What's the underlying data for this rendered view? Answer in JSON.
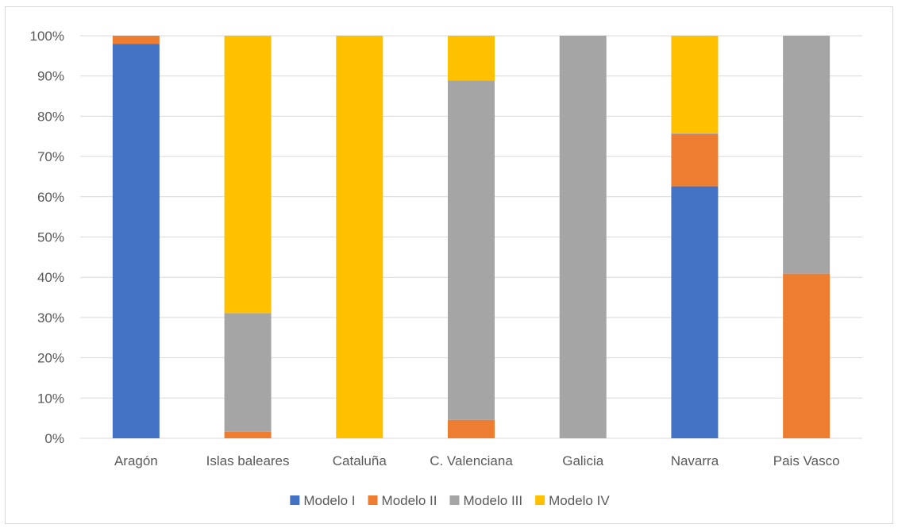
{
  "chart_data": {
    "type": "bar",
    "stacked": true,
    "percent": true,
    "categories": [
      "Aragón",
      "Islas baleares",
      "Cataluña",
      "C. Valenciana",
      "Galicia",
      "Navarra",
      "Pais Vasco"
    ],
    "series": [
      {
        "name": "Modelo I",
        "color": "#4472c4",
        "values": [
          98,
          0,
          0,
          0,
          0,
          62.6,
          0
        ]
      },
      {
        "name": "Modelo II",
        "color": "#ed7d31",
        "values": [
          2,
          1.6,
          0,
          4.6,
          0,
          13,
          40.9
        ]
      },
      {
        "name": "Modelo III",
        "color": "#a5a5a5",
        "values": [
          0,
          29.5,
          0,
          84.3,
          100,
          0.2,
          59.1
        ]
      },
      {
        "name": "Modelo IV",
        "color": "#ffc000",
        "values": [
          0,
          68.9,
          100,
          11.1,
          0,
          24.2,
          0
        ]
      }
    ],
    "yticks": [
      "0%",
      "10%",
      "20%",
      "30%",
      "40%",
      "50%",
      "60%",
      "70%",
      "80%",
      "90%",
      "100%"
    ],
    "ylim": [
      0,
      100
    ],
    "grid": true,
    "legend_position": "bottom",
    "title": "",
    "xlabel": "",
    "ylabel": ""
  }
}
